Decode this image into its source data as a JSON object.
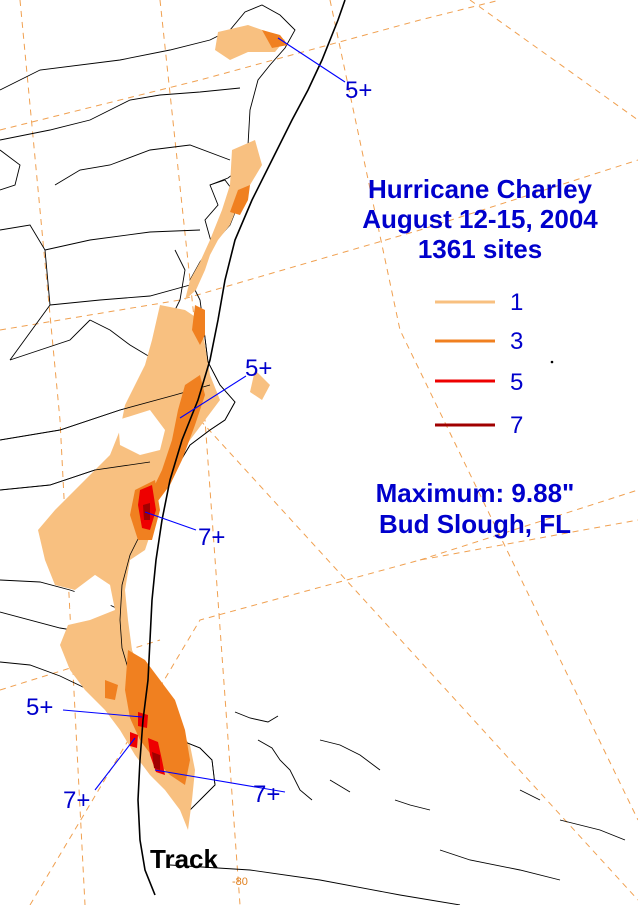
{
  "title": {
    "line1": "Hurricane Charley",
    "line2": "August 12-15, 2004",
    "line3": "1361 sites"
  },
  "legend": [
    {
      "label": "1",
      "color": "#f8c080"
    },
    {
      "label": "3",
      "color": "#f08020"
    },
    {
      "label": "5",
      "color": "#ee0000"
    },
    {
      "label": "7",
      "color": "#a00000"
    }
  ],
  "maximum": {
    "line1": "Maximum: 9.88\"",
    "line2": "Bud Slough, FL"
  },
  "annotations": {
    "maine": "5+",
    "carolina": "5+",
    "south_carolina": "7+",
    "fl_west": "5+",
    "fl_southwest": "7+",
    "fl_south": "7+"
  },
  "track_label": "Track",
  "lon_label": "-80",
  "colors": {
    "contour_1": "#f8c080",
    "contour_3": "#f08020",
    "contour_5": "#ee0000",
    "contour_7": "#a00000",
    "text_blue": "#0000cc",
    "arrow_blue": "#0000ff",
    "grid": "#f0a050",
    "boundary": "#000000"
  }
}
